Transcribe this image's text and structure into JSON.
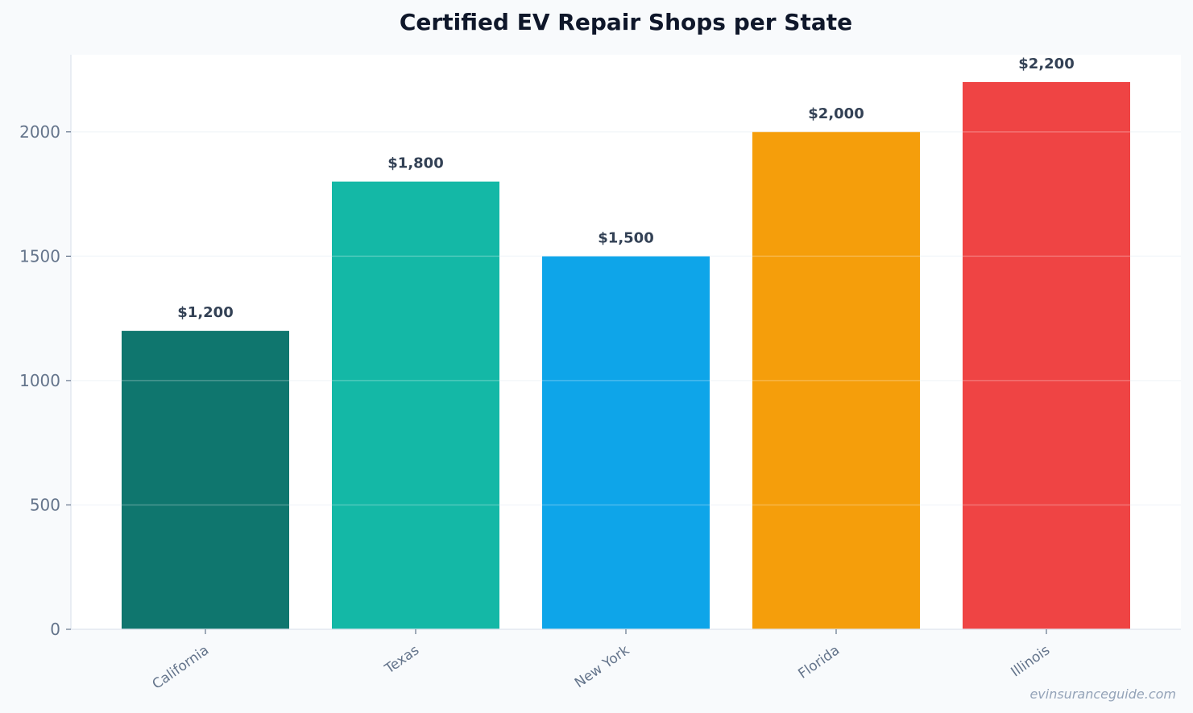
{
  "chart_data": {
    "type": "bar",
    "title": "Certified EV Repair Shops per State",
    "xlabel": "",
    "ylabel": "",
    "categories": [
      "California",
      "Texas",
      "New York",
      "Florida",
      "Illinois"
    ],
    "values": [
      1200,
      1800,
      1500,
      2000,
      2200
    ],
    "value_labels": [
      "$1,200",
      "$1,800",
      "$1,500",
      "$2,000",
      "$2,200"
    ],
    "colors": [
      "#0f766e",
      "#14b8a6",
      "#0ea5e9",
      "#f59e0b",
      "#ef4444"
    ],
    "y_ticks": [
      0,
      500,
      1000,
      1500,
      2000
    ],
    "ylim": [
      0,
      2310
    ],
    "grid": true,
    "legend": "none"
  },
  "watermark": "evinsuranceguide.com"
}
